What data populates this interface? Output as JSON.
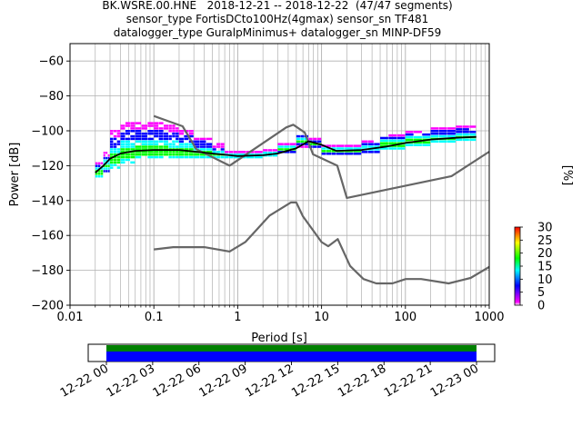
{
  "header": {
    "line1": "BK.WSRE.00.HNE   2018-12-21 -- 2018-12-22  (47/47 segments)",
    "line2": "sensor_type FortisDCto100Hz(4gmax) sensor_sn TF481",
    "line3": "datalogger_type GuralpMinimus+ datalogger_sn MINP-DF59"
  },
  "chart_data": {
    "type": "heatmap",
    "subtype": "probabilistic-power-spectral-density",
    "xlabel": "Period [s]",
    "ylabel": "Power [dB]",
    "xscale": "log",
    "xlim": [
      0.01,
      1000
    ],
    "ylim": [
      -200,
      -50
    ],
    "xticks": [
      {
        "value": 0.01,
        "label": "0.01"
      },
      {
        "value": 0.1,
        "label": "0.1"
      },
      {
        "value": 1,
        "label": "1"
      },
      {
        "value": 10,
        "label": "10"
      },
      {
        "value": 100,
        "label": "100"
      },
      {
        "value": 1000,
        "label": "1000"
      }
    ],
    "yticks": [
      {
        "value": -60,
        "label": "−60"
      },
      {
        "value": -80,
        "label": "−80"
      },
      {
        "value": -100,
        "label": "−100"
      },
      {
        "value": -120,
        "label": "−120"
      },
      {
        "value": -140,
        "label": "−140"
      },
      {
        "value": -160,
        "label": "−160"
      },
      {
        "value": -180,
        "label": "−180"
      },
      {
        "value": -200,
        "label": "−200"
      }
    ],
    "grid": true,
    "colorbar": {
      "label": "[%]",
      "range": [
        0,
        30
      ],
      "ticks": [
        "0",
        "5",
        "10",
        "15",
        "20",
        "25",
        "30"
      ],
      "colors": [
        "#ffffff",
        "#ff00ff",
        "#0000ff",
        "#00ffff",
        "#00ff00",
        "#ffff00",
        "#ff0000"
      ]
    },
    "noise_model_high": {
      "period": [
        0.1,
        0.22,
        0.32,
        0.8,
        3.8,
        4.6,
        6.3,
        7.9,
        15.4,
        20,
        354.8,
        1000
      ],
      "power": [
        -91.5,
        -97.4,
        -110.5,
        -120,
        -98,
        -96.5,
        -101,
        -113.5,
        -120,
        -138.5,
        -126,
        -112
      ]
    },
    "noise_model_low": {
      "period": [
        0.1,
        0.17,
        0.4,
        0.8,
        1.24,
        2.4,
        4.3,
        5,
        6,
        10,
        12,
        15.6,
        21.9,
        31.6,
        45,
        70,
        101,
        154,
        328,
        600,
        1000
      ],
      "power": [
        -168,
        -166.7,
        -166.7,
        -169.2,
        -163.7,
        -148.6,
        -141.1,
        -141.1,
        -149,
        -163.8,
        -166.2,
        -162.1,
        -177.5,
        -185,
        -187.5,
        -187.5,
        -185,
        -185,
        -187.5,
        -184.4,
        -178
      ]
    },
    "mean_curve": {
      "period": [
        0.02,
        0.025,
        0.03,
        0.04,
        0.06,
        0.1,
        0.2,
        0.5,
        1,
        2,
        3,
        5,
        7,
        10,
        15,
        30,
        60,
        100,
        200,
        400,
        700
      ],
      "power": [
        -124,
        -120,
        -116,
        -113,
        -111.5,
        -111,
        -111,
        -113,
        -114.5,
        -114,
        -113,
        -110,
        -106,
        -108,
        -111.5,
        -111,
        -109,
        -107,
        -105,
        -104,
        -103.5
      ]
    },
    "histogram": [
      {
        "p": [
          0.02,
          0.025
        ],
        "lo": -127,
        "hi": -118,
        "peak": -124
      },
      {
        "p": [
          0.025,
          0.03
        ],
        "lo": -124,
        "hi": -113,
        "peak": -120
      },
      {
        "p": [
          0.03,
          0.04
        ],
        "lo": -122,
        "hi": -100,
        "peak": -116
      },
      {
        "p": [
          0.04,
          0.06
        ],
        "lo": -119,
        "hi": -96,
        "peak": -113
      },
      {
        "p": [
          0.06,
          0.1
        ],
        "lo": -116,
        "hi": -95,
        "peak": -112
      },
      {
        "p": [
          0.1,
          0.15
        ],
        "lo": -116,
        "hi": -95,
        "peak": -112
      },
      {
        "p": [
          0.15,
          0.2
        ],
        "lo": -116,
        "hi": -97,
        "peak": -112
      },
      {
        "p": [
          0.2,
          0.3
        ],
        "lo": -116,
        "hi": -100,
        "peak": -112
      },
      {
        "p": [
          0.3,
          0.5
        ],
        "lo": -116,
        "hi": -104,
        "peak": -113
      },
      {
        "p": [
          0.5,
          0.7
        ],
        "lo": -116,
        "hi": -108,
        "peak": -114
      },
      {
        "p": [
          0.7,
          1
        ],
        "lo": -116,
        "hi": -112,
        "peak": -114.5
      },
      {
        "p": [
          1,
          2
        ],
        "lo": -116,
        "hi": -112,
        "peak": -114.5
      },
      {
        "p": [
          2,
          3
        ],
        "lo": -115,
        "hi": -111,
        "peak": -113.5
      },
      {
        "p": [
          3,
          5
        ],
        "lo": -113,
        "hi": -107,
        "peak": -110.5
      },
      {
        "p": [
          5,
          7
        ],
        "lo": -110,
        "hi": -103,
        "peak": -106
      },
      {
        "p": [
          7,
          10
        ],
        "lo": -110,
        "hi": -105,
        "peak": -107.5
      },
      {
        "p": [
          10,
          15
        ],
        "lo": -114,
        "hi": -108,
        "peak": -111.5
      },
      {
        "p": [
          15,
          30
        ],
        "lo": -114,
        "hi": -108,
        "peak": -111.5
      },
      {
        "p": [
          30,
          50
        ],
        "lo": -113,
        "hi": -106,
        "peak": -110
      },
      {
        "p": [
          50,
          100
        ],
        "lo": -111,
        "hi": -102,
        "peak": -108
      },
      {
        "p": [
          100,
          200
        ],
        "lo": -109,
        "hi": -100,
        "peak": -106
      },
      {
        "p": [
          200,
          400
        ],
        "lo": -107,
        "hi": -98,
        "peak": -104.5
      },
      {
        "p": [
          400,
          700
        ],
        "lo": -106,
        "hi": -97,
        "peak": -104
      }
    ]
  },
  "coverage": {
    "tick_labels": [
      "12-22 00",
      "12-22 03",
      "12-22 06",
      "12-22 09",
      "12-22 12",
      "12-22 15",
      "12-22 18",
      "12-22 21",
      "12-23 00"
    ],
    "data_color": "#0000ff",
    "gap_free_color": "#008000"
  }
}
